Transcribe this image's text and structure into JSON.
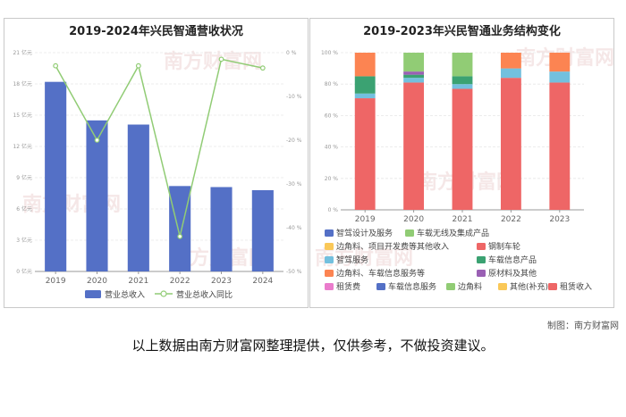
{
  "watermark": "南方财富网",
  "credit": "制图：南方财富网",
  "disclaimer": "以上数据由南方财富网整理提供，仅供参考，不做投资建议。",
  "chart_data": [
    {
      "type": "bar",
      "title": "2019-2024年兴民智通营收状况",
      "categories": [
        "2019",
        "2020",
        "2021",
        "2022",
        "2023",
        "2024"
      ],
      "y_ticks_left": [
        "0 亿元",
        "3 亿元",
        "6 亿元",
        "9 亿元",
        "12 亿元",
        "15 亿元",
        "18 亿元",
        "21 亿元"
      ],
      "y_ticks_right": [
        "0 %",
        "-10 %",
        "-20 %",
        "-30 %",
        "-40 %",
        "-50 %"
      ],
      "ylim_left": [
        0,
        21
      ],
      "ylim_right": [
        -50,
        0
      ],
      "series": [
        {
          "name": "营业总收入",
          "type": "bar",
          "color": "#5470c6",
          "values": [
            18.2,
            14.5,
            14.1,
            8.2,
            8.1,
            7.8
          ]
        },
        {
          "name": "营业总收入同比",
          "type": "line",
          "color": "#91cc75",
          "values": [
            -3.0,
            -20.0,
            -3.0,
            -42.0,
            -1.5,
            -3.5
          ]
        }
      ],
      "grid": true,
      "legend": "bottom"
    },
    {
      "type": "bar",
      "stacked": true,
      "percent": true,
      "title": "2019-2023年兴民智通业务结构变化",
      "categories": [
        "2019",
        "2020",
        "2021",
        "2022",
        "2023"
      ],
      "y_ticks": [
        "0 %",
        "20 %",
        "40 %",
        "60 %",
        "80 %",
        "100 %"
      ],
      "ylim": [
        0,
        100
      ],
      "series": [
        {
          "name": "钢制车轮",
          "color": "#ee6666",
          "values": [
            71,
            81,
            77,
            84,
            81
          ]
        },
        {
          "name": "智驾服务",
          "color": "#73c0de",
          "values": [
            3,
            3,
            3,
            6,
            7
          ]
        },
        {
          "name": "车载信息产品",
          "color": "#3ba272",
          "values": [
            11,
            2,
            5,
            0,
            0
          ]
        },
        {
          "name": "原材料及其他",
          "color": "#9a60b4",
          "values": [
            0,
            2,
            0,
            0,
            0
          ]
        },
        {
          "name": "车载无线及集成产品",
          "color": "#91cc75",
          "values": [
            0,
            12,
            15,
            0,
            0
          ]
        },
        {
          "name": "边角料、项目开发费等其他收入",
          "color": "#fc8452",
          "values": [
            15,
            0,
            0,
            10,
            12
          ]
        }
      ],
      "legend_items": [
        {
          "name": "智驾设计及服务",
          "color": "#5470c6"
        },
        {
          "name": "车载无线及集成产品",
          "color": "#91cc75"
        },
        {
          "name": "边角料、项目开发费等其他收入",
          "color": "#fac858"
        },
        {
          "name": "钢制车轮",
          "color": "#ee6666"
        },
        {
          "name": "智驾服务",
          "color": "#73c0de"
        },
        {
          "name": "车载信息产品",
          "color": "#3ba272"
        },
        {
          "name": "边角料、车载信息服务等",
          "color": "#fc8452"
        },
        {
          "name": "原材料及其他",
          "color": "#9a60b4"
        },
        {
          "name": "租赁费",
          "color": "#ea7ccc"
        },
        {
          "name": "车载信息服务",
          "color": "#5470c6"
        },
        {
          "name": "边角料",
          "color": "#91cc75"
        },
        {
          "name": "其他(补充)",
          "color": "#fac858"
        },
        {
          "name": "租赁收入",
          "color": "#ee6666"
        }
      ],
      "legend": "bottom"
    }
  ]
}
